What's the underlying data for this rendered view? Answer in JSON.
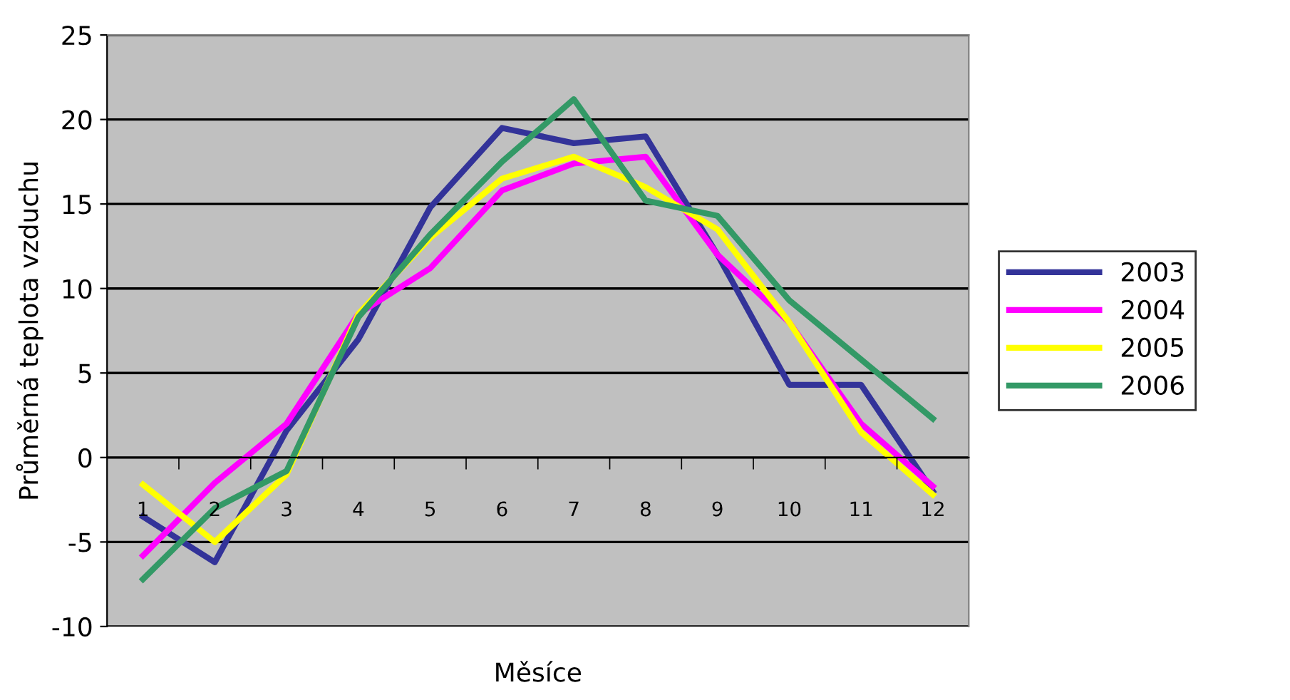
{
  "chart_data": {
    "type": "line",
    "xlabel": "Měsíce",
    "ylabel": "Průměrná teplota vzduchu",
    "categories": [
      "1",
      "2",
      "3",
      "4",
      "5",
      "6",
      "7",
      "8",
      "9",
      "10",
      "11",
      "12"
    ],
    "series": [
      {
        "name": "2003",
        "color": "#333399",
        "values": [
          -3.5,
          -6.2,
          1.6,
          7,
          14.8,
          19.5,
          18.6,
          19,
          12,
          4.3,
          4.3,
          -2
        ]
      },
      {
        "name": "2004",
        "color": "#ff00ff",
        "values": [
          -5.8,
          -1.5,
          2,
          8.5,
          11.2,
          15.8,
          17.4,
          17.8,
          12,
          8,
          2,
          -1.7
        ]
      },
      {
        "name": "2005",
        "color": "#ffff00",
        "values": [
          -1.6,
          -5,
          -1,
          8.5,
          13,
          16.5,
          17.8,
          16,
          13.5,
          8,
          1.5,
          -2.2
        ]
      },
      {
        "name": "2006",
        "color": "#339966",
        "values": [
          -7.2,
          -3,
          -0.8,
          8.3,
          13.2,
          17.5,
          21.2,
          15.2,
          14.3,
          9.3,
          5.8,
          2.3
        ]
      }
    ],
    "ylim": [
      -10,
      25
    ],
    "yticks": [
      -10,
      -5,
      0,
      5,
      10,
      15,
      20,
      25
    ],
    "grid": "y",
    "legend": "right",
    "marker": "none",
    "line_style": "solid"
  }
}
